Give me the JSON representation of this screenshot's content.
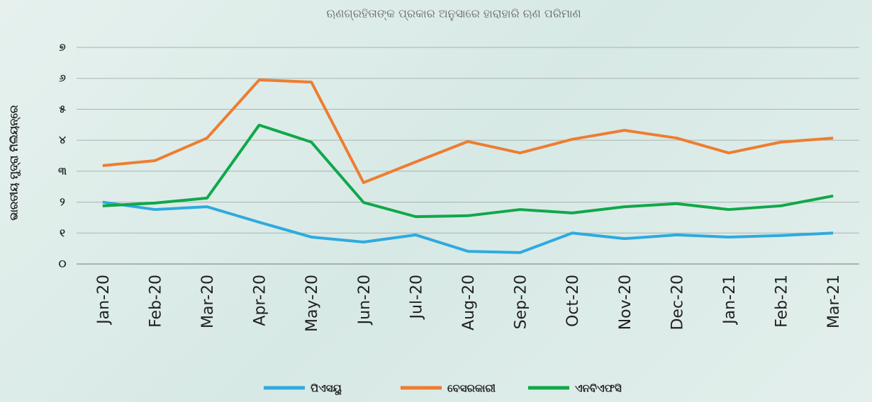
{
  "chart_data": {
    "type": "line",
    "title": "ଋଣଗ୍ରହିତାଙ୍କ ପ୍ରକାର ଅନୁସାରେ ହାରାହାରି ଋଣ ପରିମାଣ",
    "y_label": "ଭାରତୀୟ ମୁଦ୍ରା ମିଲିୟନ୍‌ରେ",
    "categories": [
      "Jan-20",
      "Feb-20",
      "Mar-20",
      "Apr-20",
      "May-20",
      "Jun-20",
      "Jul-20",
      "Aug-20",
      "Sep-20",
      "Oct-20",
      "Nov-20",
      "Dec-20",
      "Jan-21",
      "Feb-21",
      "Mar-21"
    ],
    "series": [
      {
        "name": "ପିଏସୟୁ",
        "color": "#2eaadf",
        "values": [
          2.0,
          1.76,
          1.85,
          1.35,
          0.87,
          0.71,
          0.94,
          0.41,
          0.37,
          1.0,
          0.82,
          0.94,
          0.87,
          0.92,
          1.0
        ]
      },
      {
        "name": "ବେସରକାରୀ",
        "color": "#ee7d31",
        "values": [
          3.18,
          3.34,
          4.07,
          5.95,
          5.88,
          2.63,
          3.3,
          3.96,
          3.59,
          4.03,
          4.32,
          4.07,
          3.59,
          3.94,
          4.07
        ]
      },
      {
        "name": "ଏନବିଏଫସି",
        "color": "#10a84a",
        "values": [
          1.88,
          1.97,
          2.13,
          4.49,
          3.94,
          1.99,
          1.53,
          1.56,
          1.76,
          1.65,
          1.85,
          1.95,
          1.76,
          1.88,
          2.2
        ]
      }
    ],
    "ylim": [
      0,
      7
    ],
    "yticks": [
      {
        "value": 0,
        "label": "୦"
      },
      {
        "value": 1,
        "label": "୧"
      },
      {
        "value": 2,
        "label": "୨"
      },
      {
        "value": 3,
        "label": "୩"
      },
      {
        "value": 4,
        "label": "୪"
      },
      {
        "value": 5,
        "label": "୫"
      },
      {
        "value": 6,
        "label": "୬"
      },
      {
        "value": 7,
        "label": "୭"
      }
    ],
    "grid": true,
    "legend": "bottom"
  }
}
